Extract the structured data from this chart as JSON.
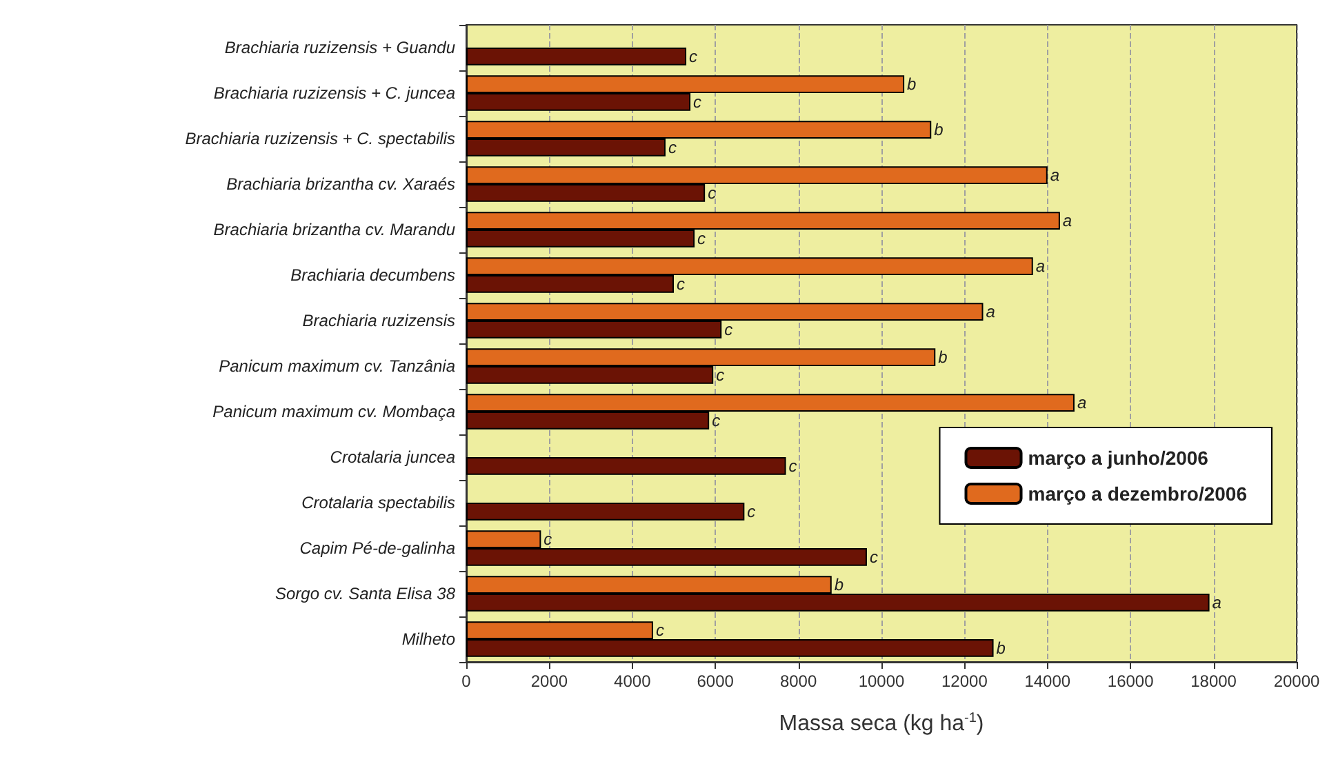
{
  "chart_data": {
    "type": "bar",
    "orientation": "horizontal",
    "categories": [
      "Brachiaria ruzizensis + Guandu",
      "Brachiaria ruzizensis + C. juncea",
      "Brachiaria ruzizensis + C. spectabilis",
      "Brachiaria brizantha cv. Xaraés",
      "Brachiaria brizantha cv. Marandu",
      "Brachiaria decumbens",
      "Brachiaria ruzizensis",
      "Panicum maximum cv. Tanzânia",
      "Panicum maximum cv. Mombaça",
      "Crotalaria juncea",
      "Crotalaria spectabilis",
      "Capim Pé-de-galinha",
      "Sorgo cv. Santa Elisa 38",
      "Milheto"
    ],
    "series": [
      {
        "name": "março a junho/2006",
        "color": "#6b1305",
        "values": [
          5300,
          5400,
          4800,
          5750,
          5500,
          5000,
          6150,
          5950,
          5850,
          7700,
          6700,
          9650,
          17900,
          12700
        ],
        "value_labels": [
          "c",
          "c",
          "c",
          "c",
          "c",
          "c",
          "c",
          "c",
          "c",
          "c",
          "c",
          "c",
          "a",
          "b"
        ]
      },
      {
        "name": "março a dezembro/2006",
        "color": "#e06a1e",
        "values": [
          null,
          10550,
          11200,
          14000,
          14300,
          13650,
          12450,
          11300,
          14650,
          null,
          null,
          1800,
          8800,
          4500
        ],
        "value_labels": [
          null,
          "b",
          "b",
          "a",
          "a",
          "a",
          "a",
          "b",
          "a",
          null,
          null,
          "c",
          "b",
          "c"
        ]
      }
    ],
    "xlabel": "Massa seca (kg ha$^{-1}$)",
    "xlim": [
      0,
      20000
    ],
    "xticks": [
      0,
      2000,
      4000,
      6000,
      8000,
      10000,
      12000,
      14000,
      16000,
      18000,
      20000
    ],
    "grid": "x",
    "legend": "right"
  }
}
